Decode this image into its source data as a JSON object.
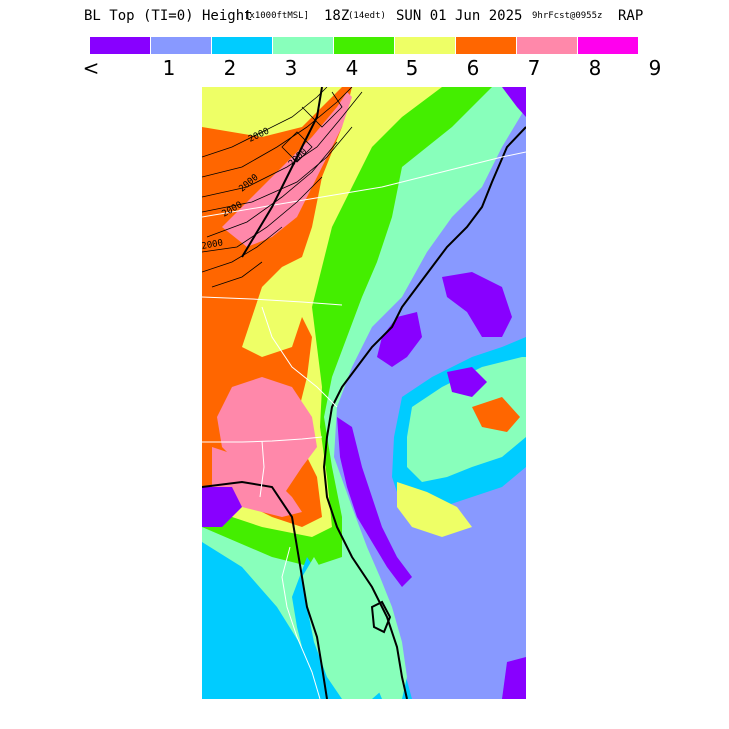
{
  "title": {
    "main": "BL Top (TI=0) Height",
    "units": "[x1000ftMSL]",
    "valid_time": "18Z",
    "local_time": "(14edt)",
    "date": "SUN 01 Jun 2025",
    "forecast": "9hrFcst@0955z",
    "model": "RAP"
  },
  "legend": {
    "colors": [
      "#8800ff",
      "#8899ff",
      "#00ccff",
      "#88ffbb",
      "#44ee00",
      "#eeff66",
      "#ff6600",
      "#ff88aa",
      "#ff00ee"
    ],
    "labels": [
      "<",
      "1",
      "2",
      "3",
      "4",
      "5",
      "6",
      "7",
      "8",
      "9"
    ]
  },
  "map": {
    "contour_labels": [
      "2000",
      "2000",
      "2000",
      "2000",
      "2000"
    ],
    "fill_colors": {
      "lt1": "#8800ff",
      "c1": "#8899ff",
      "c2": "#00ccff",
      "c3": "#88ffbb",
      "c4": "#44ee00",
      "c5": "#eeff66",
      "c6": "#ff6600",
      "c7": "#ff88aa"
    }
  }
}
